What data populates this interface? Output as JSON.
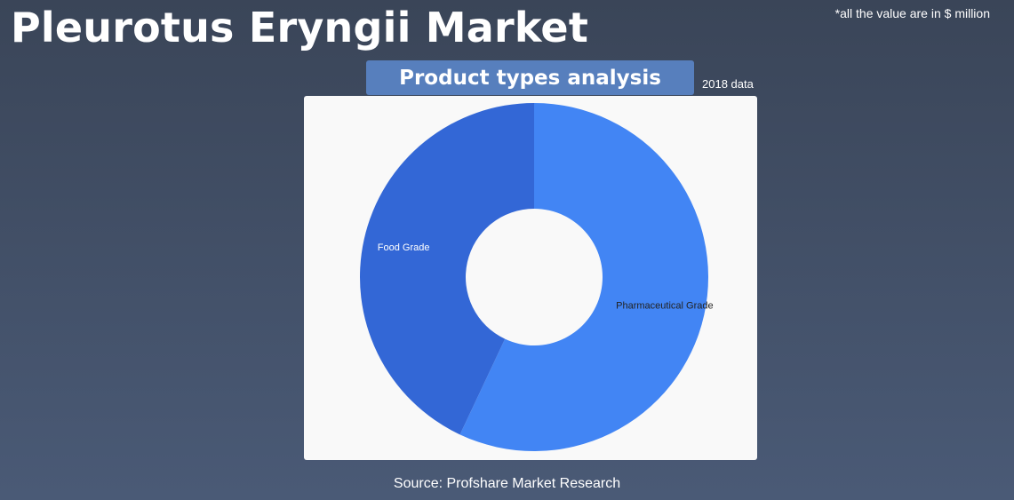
{
  "header": {
    "title": "Pleurotus Eryngii Market",
    "units_note": "*all the value are in $ million"
  },
  "subtitle": "Product types analysis",
  "year_note": "2018 data",
  "footer": {
    "source": "Source: Profshare Market Research"
  },
  "chart_data": {
    "type": "pie",
    "donut": true,
    "categories": [
      "Pharmaceutical Grade",
      "Food Grade"
    ],
    "values": [
      57,
      43
    ],
    "colors": [
      "#4285f4",
      "#3367d6"
    ],
    "label_colors": [
      "#222222",
      "#ffffff"
    ]
  }
}
